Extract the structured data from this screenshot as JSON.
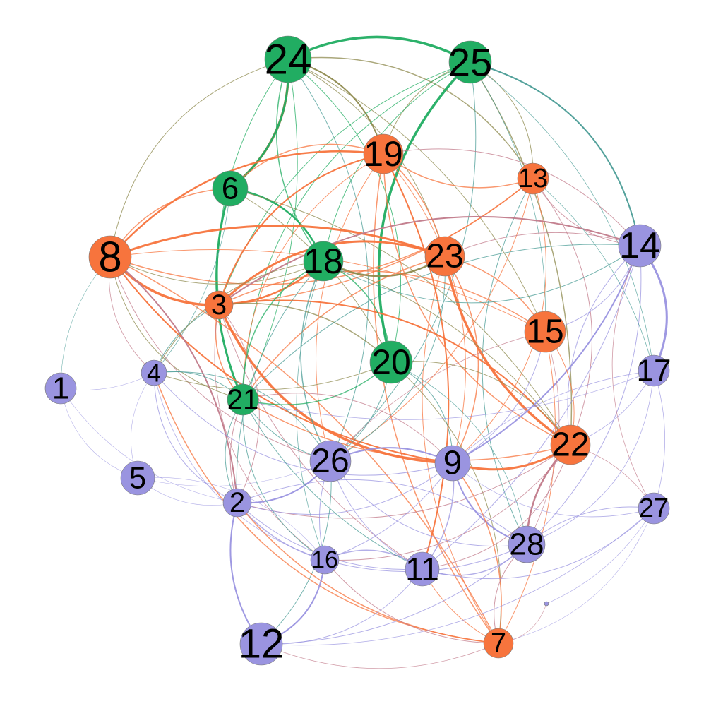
{
  "colors": {
    "green": "#21ad62",
    "orange": "#f7743d",
    "purple": "#9a94e0",
    "olive": "#8e8a4e",
    "teal": "#4a9c96",
    "mauve": "#c17a8a"
  },
  "nodes": [
    {
      "id": "24",
      "label": "24",
      "group": "green"
    },
    {
      "id": "25",
      "label": "25",
      "group": "green"
    },
    {
      "id": "19",
      "label": "19",
      "group": "orange"
    },
    {
      "id": "13",
      "label": "13",
      "group": "orange"
    },
    {
      "id": "6",
      "label": "6",
      "group": "green"
    },
    {
      "id": "8",
      "label": "8",
      "group": "orange"
    },
    {
      "id": "18",
      "label": "18",
      "group": "green"
    },
    {
      "id": "23",
      "label": "23",
      "group": "orange"
    },
    {
      "id": "14",
      "label": "14",
      "group": "purple"
    },
    {
      "id": "3",
      "label": "3",
      "group": "orange"
    },
    {
      "id": "15",
      "label": "15",
      "group": "orange"
    },
    {
      "id": "20",
      "label": "20",
      "group": "green"
    },
    {
      "id": "17",
      "label": "17",
      "group": "purple"
    },
    {
      "id": "1",
      "label": "1",
      "group": "purple"
    },
    {
      "id": "4",
      "label": "4",
      "group": "purple"
    },
    {
      "id": "21",
      "label": "21",
      "group": "green"
    },
    {
      "id": "22",
      "label": "22",
      "group": "orange"
    },
    {
      "id": "26",
      "label": "26",
      "group": "purple"
    },
    {
      "id": "9",
      "label": "9",
      "group": "purple"
    },
    {
      "id": "5",
      "label": "5",
      "group": "purple"
    },
    {
      "id": "2",
      "label": "2",
      "group": "purple"
    },
    {
      "id": "27",
      "label": "27",
      "group": "purple"
    },
    {
      "id": "28",
      "label": "28",
      "group": "purple"
    },
    {
      "id": "16",
      "label": "16",
      "group": "purple"
    },
    {
      "id": "11",
      "label": "11",
      "group": "purple"
    },
    {
      "id": "12",
      "label": "12",
      "group": "purple"
    },
    {
      "id": "7",
      "label": "7",
      "group": "orange"
    },
    {
      "id": "isolated",
      "label": "",
      "group": "purple"
    }
  ],
  "edges": [
    {
      "source": "24",
      "target": "25",
      "color": "green",
      "weight": 3.5
    },
    {
      "source": "24",
      "target": "6",
      "color": "olive",
      "weight": 3.5
    },
    {
      "source": "24",
      "target": "6",
      "color": "green",
      "weight": 2.5
    },
    {
      "source": "24",
      "target": "18",
      "color": "green",
      "weight": 1.5
    },
    {
      "source": "24",
      "target": "19",
      "color": "olive",
      "weight": 2
    },
    {
      "source": "24",
      "target": "13",
      "color": "olive",
      "weight": 1.5
    },
    {
      "source": "24",
      "target": "3",
      "color": "green",
      "weight": 1
    },
    {
      "source": "24",
      "target": "21",
      "color": "green",
      "weight": 1
    },
    {
      "source": "24",
      "target": "20",
      "color": "green",
      "weight": 1
    },
    {
      "source": "24",
      "target": "23",
      "color": "olive",
      "weight": 1
    },
    {
      "source": "24",
      "target": "8",
      "color": "olive",
      "weight": 1
    },
    {
      "source": "24",
      "target": "15",
      "color": "olive",
      "weight": 1
    },
    {
      "source": "24",
      "target": "26",
      "color": "teal",
      "weight": 1
    },
    {
      "source": "25",
      "target": "20",
      "color": "green",
      "weight": 3.5
    },
    {
      "source": "25",
      "target": "14",
      "color": "teal",
      "weight": 2
    },
    {
      "source": "25",
      "target": "13",
      "color": "olive",
      "weight": 1
    },
    {
      "source": "25",
      "target": "19",
      "color": "olive",
      "weight": 1
    },
    {
      "source": "25",
      "target": "18",
      "color": "green",
      "weight": 1
    },
    {
      "source": "25",
      "target": "22",
      "color": "olive",
      "weight": 1.5
    },
    {
      "source": "25",
      "target": "3",
      "color": "green",
      "weight": 1
    },
    {
      "source": "25",
      "target": "21",
      "color": "green",
      "weight": 1
    },
    {
      "source": "25",
      "target": "26",
      "color": "teal",
      "weight": 1
    },
    {
      "source": "25",
      "target": "17",
      "color": "teal",
      "weight": 0.8
    },
    {
      "source": "25",
      "target": "15",
      "color": "teal",
      "weight": 0.8
    },
    {
      "source": "6",
      "target": "18",
      "color": "green",
      "weight": 2.5
    },
    {
      "source": "6",
      "target": "21",
      "color": "green",
      "weight": 3
    },
    {
      "source": "6",
      "target": "19",
      "color": "orange",
      "weight": 1.5
    },
    {
      "source": "6",
      "target": "8",
      "color": "orange",
      "weight": 1.5
    },
    {
      "source": "6",
      "target": "20",
      "color": "olive",
      "weight": 1
    },
    {
      "source": "6",
      "target": "22",
      "color": "olive",
      "weight": 1
    },
    {
      "source": "6",
      "target": "4",
      "color": "teal",
      "weight": 0.8
    },
    {
      "source": "8",
      "target": "19",
      "color": "orange",
      "weight": 2.5
    },
    {
      "source": "8",
      "target": "3",
      "color": "orange",
      "weight": 3.5
    },
    {
      "source": "8",
      "target": "23",
      "color": "orange",
      "weight": 3
    },
    {
      "source": "8",
      "target": "13",
      "color": "orange",
      "weight": 1.5
    },
    {
      "source": "8",
      "target": "9",
      "color": "orange",
      "weight": 2
    },
    {
      "source": "8",
      "target": "2",
      "color": "mauve",
      "weight": 2
    },
    {
      "source": "8",
      "target": "7",
      "color": "orange",
      "weight": 1.5
    },
    {
      "source": "8",
      "target": "21",
      "color": "olive",
      "weight": 1
    },
    {
      "source": "8",
      "target": "1",
      "color": "teal",
      "weight": 0.6
    },
    {
      "source": "8",
      "target": "4",
      "color": "mauve",
      "weight": 0.8
    },
    {
      "source": "8",
      "target": "15",
      "color": "orange",
      "weight": 1
    },
    {
      "source": "8",
      "target": "18",
      "color": "olive",
      "weight": 1
    },
    {
      "source": "8",
      "target": "26",
      "color": "mauve",
      "weight": 1
    },
    {
      "source": "19",
      "target": "3",
      "color": "orange",
      "weight": 2
    },
    {
      "source": "19",
      "target": "13",
      "color": "orange",
      "weight": 1.5
    },
    {
      "source": "19",
      "target": "11",
      "color": "orange",
      "weight": 2
    },
    {
      "source": "19",
      "target": "7",
      "color": "orange",
      "weight": 1.5
    },
    {
      "source": "19",
      "target": "22",
      "color": "orange",
      "weight": 1.5
    },
    {
      "source": "19",
      "target": "9",
      "color": "orange",
      "weight": 1
    },
    {
      "source": "19",
      "target": "23",
      "color": "orange",
      "weight": 1.5
    },
    {
      "source": "19",
      "target": "14",
      "color": "mauve",
      "weight": 1
    },
    {
      "source": "19",
      "target": "21",
      "color": "orange",
      "weight": 1
    },
    {
      "source": "19",
      "target": "26",
      "color": "orange",
      "weight": 1
    },
    {
      "source": "13",
      "target": "3",
      "color": "orange",
      "weight": 1.5
    },
    {
      "source": "13",
      "target": "22",
      "color": "mauve",
      "weight": 1
    },
    {
      "source": "13",
      "target": "28",
      "color": "teal",
      "weight": 1
    },
    {
      "source": "13",
      "target": "9",
      "color": "orange",
      "weight": 1
    },
    {
      "source": "13",
      "target": "14",
      "color": "mauve",
      "weight": 1
    },
    {
      "source": "13",
      "target": "26",
      "color": "orange",
      "weight": 1
    },
    {
      "source": "23",
      "target": "3",
      "color": "orange",
      "weight": 3
    },
    {
      "source": "23",
      "target": "22",
      "color": "orange",
      "weight": 3.5
    },
    {
      "source": "23",
      "target": "18",
      "color": "olive",
      "weight": 2.5
    },
    {
      "source": "23",
      "target": "9",
      "color": "orange",
      "weight": 1.5
    },
    {
      "source": "23",
      "target": "15",
      "color": "orange",
      "weight": 1.5
    },
    {
      "source": "23",
      "target": "21",
      "color": "orange",
      "weight": 1.5
    },
    {
      "source": "23",
      "target": "14",
      "color": "mauve",
      "weight": 1
    },
    {
      "source": "23",
      "target": "7",
      "color": "orange",
      "weight": 1
    },
    {
      "source": "23",
      "target": "26",
      "color": "teal",
      "weight": 1
    },
    {
      "source": "3",
      "target": "18",
      "color": "orange",
      "weight": 2.5
    },
    {
      "source": "3",
      "target": "9",
      "color": "orange",
      "weight": 3.5
    },
    {
      "source": "3",
      "target": "22",
      "color": "orange",
      "weight": 2
    },
    {
      "source": "3",
      "target": "15",
      "color": "orange",
      "weight": 1.5
    },
    {
      "source": "3",
      "target": "14",
      "color": "mauve",
      "weight": 2
    },
    {
      "source": "3",
      "target": "20",
      "color": "olive",
      "weight": 1.5
    },
    {
      "source": "3",
      "target": "4",
      "color": "teal",
      "weight": 1
    },
    {
      "source": "3",
      "target": "21",
      "color": "orange",
      "weight": 1.5
    },
    {
      "source": "3",
      "target": "2",
      "color": "mauve",
      "weight": 1
    },
    {
      "source": "3",
      "target": "11",
      "color": "mauve",
      "weight": 1
    },
    {
      "source": "3",
      "target": "16",
      "color": "mauve",
      "weight": 0.8
    },
    {
      "source": "18",
      "target": "21",
      "color": "green",
      "weight": 1.5
    },
    {
      "source": "18",
      "target": "20",
      "color": "green",
      "weight": 1.5
    },
    {
      "source": "18",
      "target": "26",
      "color": "teal",
      "weight": 1.5
    },
    {
      "source": "18",
      "target": "22",
      "color": "olive",
      "weight": 1
    },
    {
      "source": "18",
      "target": "14",
      "color": "teal",
      "weight": 1
    },
    {
      "source": "18",
      "target": "2",
      "color": "teal",
      "weight": 1
    },
    {
      "source": "18",
      "target": "4",
      "color": "olive",
      "weight": 1
    },
    {
      "source": "18",
      "target": "16",
      "color": "teal",
      "weight": 0.8
    },
    {
      "source": "20",
      "target": "21",
      "color": "green",
      "weight": 1.5
    },
    {
      "source": "20",
      "target": "26",
      "color": "teal",
      "weight": 1
    },
    {
      "source": "20",
      "target": "9",
      "color": "teal",
      "weight": 1
    },
    {
      "source": "20",
      "target": "22",
      "color": "olive",
      "weight": 1
    },
    {
      "source": "20",
      "target": "4",
      "color": "olive",
      "weight": 1
    },
    {
      "source": "20",
      "target": "7",
      "color": "olive",
      "weight": 1
    },
    {
      "source": "20",
      "target": "28",
      "color": "teal",
      "weight": 0.8
    },
    {
      "source": "14",
      "target": "17",
      "color": "purple",
      "weight": 3
    },
    {
      "source": "14",
      "target": "9",
      "color": "purple",
      "weight": 2
    },
    {
      "source": "14",
      "target": "15",
      "color": "purple",
      "weight": 1
    },
    {
      "source": "14",
      "target": "28",
      "color": "purple",
      "weight": 1
    },
    {
      "source": "14",
      "target": "11",
      "color": "purple",
      "weight": 1
    },
    {
      "source": "14",
      "target": "22",
      "color": "purple",
      "weight": 1
    },
    {
      "source": "14",
      "target": "21",
      "color": "teal",
      "weight": 1
    },
    {
      "source": "15",
      "target": "9",
      "color": "purple",
      "weight": 1
    },
    {
      "source": "15",
      "target": "22",
      "color": "orange",
      "weight": 1
    },
    {
      "source": "15",
      "target": "7",
      "color": "orange",
      "weight": 1
    },
    {
      "source": "15",
      "target": "26",
      "color": "mauve",
      "weight": 0.8
    },
    {
      "source": "15",
      "target": "28",
      "color": "mauve",
      "weight": 0.8
    },
    {
      "source": "22",
      "target": "9",
      "color": "orange",
      "weight": 3
    },
    {
      "source": "22",
      "target": "28",
      "color": "mauve",
      "weight": 2.5
    },
    {
      "source": "22",
      "target": "27",
      "color": "mauve",
      "weight": 0.8
    },
    {
      "source": "22",
      "target": "11",
      "color": "mauve",
      "weight": 1
    },
    {
      "source": "22",
      "target": "16",
      "color": "mauve",
      "weight": 1
    },
    {
      "source": "22",
      "target": "2",
      "color": "mauve",
      "weight": 1
    },
    {
      "source": "22",
      "target": "21",
      "color": "orange",
      "weight": 1.5
    },
    {
      "source": "9",
      "target": "26",
      "color": "purple",
      "weight": 2
    },
    {
      "source": "9",
      "target": "28",
      "color": "purple",
      "weight": 2
    },
    {
      "source": "9",
      "target": "11",
      "color": "purple",
      "weight": 1.5
    },
    {
      "source": "9",
      "target": "7",
      "color": "orange",
      "weight": 1.5
    },
    {
      "source": "9",
      "target": "21",
      "color": "mauve",
      "weight": 1
    },
    {
      "source": "9",
      "target": "2",
      "color": "purple",
      "weight": 1
    },
    {
      "source": "9",
      "target": "16",
      "color": "purple",
      "weight": 1
    },
    {
      "source": "9",
      "target": "27",
      "color": "purple",
      "weight": 0.8
    },
    {
      "source": "9",
      "target": "4",
      "color": "purple",
      "weight": 1
    },
    {
      "source": "26",
      "target": "2",
      "color": "purple",
      "weight": 2
    },
    {
      "source": "26",
      "target": "16",
      "color": "purple",
      "weight": 1
    },
    {
      "source": "26",
      "target": "11",
      "color": "purple",
      "weight": 1
    },
    {
      "source": "26",
      "target": "12",
      "color": "teal",
      "weight": 1
    },
    {
      "source": "26",
      "target": "28",
      "color": "purple",
      "weight": 1
    },
    {
      "source": "26",
      "target": "5",
      "color": "purple",
      "weight": 0.6
    },
    {
      "source": "26",
      "target": "4",
      "color": "teal",
      "weight": 1
    },
    {
      "source": "2",
      "target": "16",
      "color": "purple",
      "weight": 1.5
    },
    {
      "source": "2",
      "target": "12",
      "color": "purple",
      "weight": 2
    },
    {
      "source": "2",
      "target": "7",
      "color": "orange",
      "weight": 1.5
    },
    {
      "source": "2",
      "target": "11",
      "color": "purple",
      "weight": 1
    },
    {
      "source": "2",
      "target": "28",
      "color": "purple",
      "weight": 1
    },
    {
      "source": "2",
      "target": "4",
      "color": "purple",
      "weight": 1
    },
    {
      "source": "2",
      "target": "21",
      "color": "teal",
      "weight": 1
    },
    {
      "source": "4",
      "target": "21",
      "color": "teal",
      "weight": 1
    },
    {
      "source": "4",
      "target": "7",
      "color": "orange",
      "weight": 1.5
    },
    {
      "source": "4",
      "target": "1",
      "color": "purple",
      "weight": 0.6
    },
    {
      "source": "4",
      "target": "5",
      "color": "purple",
      "weight": 0.6
    },
    {
      "source": "4",
      "target": "16",
      "color": "purple",
      "weight": 0.8
    },
    {
      "source": "1",
      "target": "5",
      "color": "purple",
      "weight": 0.6
    },
    {
      "source": "1",
      "target": "2",
      "color": "purple",
      "weight": 0.6
    },
    {
      "source": "5",
      "target": "2",
      "color": "purple",
      "weight": 0.6
    },
    {
      "source": "5",
      "target": "16",
      "color": "purple",
      "weight": 0.6
    },
    {
      "source": "16",
      "target": "12",
      "color": "purple",
      "weight": 2
    },
    {
      "source": "16",
      "target": "11",
      "color": "purple",
      "weight": 1.5
    },
    {
      "source": "16",
      "target": "7",
      "color": "mauve",
      "weight": 1
    },
    {
      "source": "16",
      "target": "28",
      "color": "purple",
      "weight": 1
    },
    {
      "source": "11",
      "target": "7",
      "color": "orange",
      "weight": 1
    },
    {
      "source": "11",
      "target": "28",
      "color": "purple",
      "weight": 1.5
    },
    {
      "source": "11",
      "target": "27",
      "color": "purple",
      "weight": 1
    },
    {
      "source": "11",
      "target": "12",
      "color": "purple",
      "weight": 1
    },
    {
      "source": "28",
      "target": "27",
      "color": "purple",
      "weight": 1
    },
    {
      "source": "28",
      "target": "7",
      "color": "mauve",
      "weight": 1
    },
    {
      "source": "28",
      "target": "17",
      "color": "purple",
      "weight": 0.8
    },
    {
      "source": "28",
      "target": "12",
      "color": "purple",
      "weight": 1
    },
    {
      "source": "27",
      "target": "17",
      "color": "purple",
      "weight": 0.8
    },
    {
      "source": "27",
      "target": "12",
      "color": "purple",
      "weight": 0.8
    },
    {
      "source": "27",
      "target": "14",
      "color": "mauve",
      "weight": 0.8
    },
    {
      "source": "27",
      "target": "7",
      "color": "purple",
      "weight": 0.6
    },
    {
      "source": "17",
      "target": "22",
      "color": "purple",
      "weight": 0.8
    },
    {
      "source": "17",
      "target": "21",
      "color": "purple",
      "weight": 0.8
    },
    {
      "source": "17",
      "target": "9",
      "color": "purple",
      "weight": 0.8
    },
    {
      "source": "12",
      "target": "7",
      "color": "mauve",
      "weight": 0.8
    },
    {
      "source": "21",
      "target": "16",
      "color": "teal",
      "weight": 1
    },
    {
      "source": "21",
      "target": "11",
      "color": "teal",
      "weight": 1
    },
    {
      "source": "21",
      "target": "2",
      "color": "mauve",
      "weight": 1
    },
    {
      "source": "21",
      "target": "26",
      "color": "teal",
      "weight": 1
    },
    {
      "source": "13",
      "target": "17",
      "color": "teal",
      "weight": 0.8
    },
    {
      "source": "isolated",
      "target": "27",
      "color": "purple",
      "weight": 0.6
    },
    {
      "source": "isolated",
      "target": "7",
      "color": "mauve",
      "weight": 0.6
    }
  ]
}
